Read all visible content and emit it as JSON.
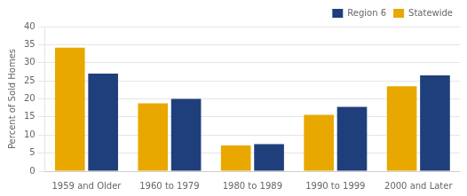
{
  "chart_data": {
    "type": "bar",
    "categories": [
      "1959 and Older",
      "1960 to 1979",
      "1980 to 1989",
      "1990 to 1999",
      "2000 and Later"
    ],
    "series": [
      {
        "name": "Statewide",
        "color": "#E8A800",
        "values": [
          34.2,
          18.8,
          7.1,
          15.6,
          23.5
        ]
      },
      {
        "name": "Region 6",
        "color": "#1F3E7C",
        "values": [
          27.0,
          20.0,
          7.5,
          17.8,
          26.5
        ]
      }
    ],
    "ylabel": "Percent of Sold Homes",
    "ylim": [
      0,
      40
    ],
    "yticks": [
      0,
      5,
      10,
      15,
      20,
      25,
      30,
      35,
      40
    ],
    "grid": true,
    "legend": "upper right"
  }
}
